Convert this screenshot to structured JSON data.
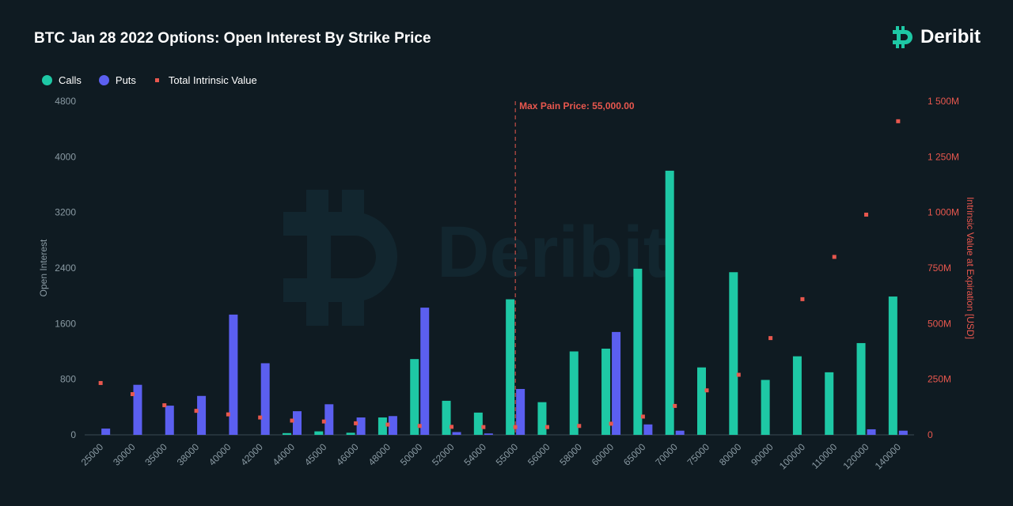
{
  "header": {
    "title": "BTC Jan 28 2022 Options: Open Interest By Strike Price",
    "brand": "Deribit"
  },
  "legend": {
    "calls": "Calls",
    "puts": "Puts",
    "intrinsic": "Total Intrinsic Value"
  },
  "colors": {
    "calls": "#1ec8a5",
    "puts": "#5b5ff0",
    "intrinsic": "#e8574e",
    "background": "#0f1b22"
  },
  "chart_data": {
    "type": "bar",
    "title": "BTC Jan 28 2022 Options: Open Interest By Strike Price",
    "xlabel": "",
    "ylabel": "Open Interest",
    "y2label": "Intrinsic Value at Expiration [USD]",
    "ylim": [
      0,
      4800
    ],
    "y2lim": [
      0,
      1500
    ],
    "yticks": [
      "0",
      "800",
      "1600",
      "2400",
      "3200",
      "4000",
      "4800"
    ],
    "y2ticks": [
      "0",
      "250M",
      "500M",
      "750M",
      "1 000M",
      "1 250M",
      "1 500M"
    ],
    "categories": [
      "25000",
      "30000",
      "35000",
      "38000",
      "40000",
      "42000",
      "44000",
      "45000",
      "46000",
      "48000",
      "50000",
      "52000",
      "54000",
      "55000",
      "56000",
      "58000",
      "60000",
      "65000",
      "70000",
      "75000",
      "80000",
      "90000",
      "100000",
      "110000",
      "120000",
      "140000"
    ],
    "series": [
      {
        "name": "Calls",
        "kind": "bar",
        "axis": "left",
        "values": [
          0,
          0,
          0,
          0,
          0,
          0,
          25,
          50,
          30,
          250,
          1090,
          490,
          320,
          1950,
          470,
          1200,
          1240,
          2390,
          3800,
          970,
          2340,
          790,
          1130,
          900,
          1320,
          1990
        ]
      },
      {
        "name": "Puts",
        "kind": "bar",
        "axis": "left",
        "values": [
          90,
          720,
          420,
          560,
          1730,
          1030,
          340,
          440,
          250,
          270,
          1830,
          40,
          20,
          660,
          0,
          0,
          1480,
          150,
          60,
          0,
          0,
          0,
          0,
          0,
          80,
          60
        ]
      },
      {
        "name": "Total Intrinsic Value",
        "kind": "scatter",
        "axis": "right",
        "unit": "M USD",
        "values": [
          233,
          183,
          133,
          108,
          92,
          78,
          64,
          60,
          52,
          46,
          40,
          36,
          35,
          35,
          35,
          40,
          50,
          82,
          130,
          200,
          270,
          435,
          610,
          800,
          990,
          1410
        ]
      }
    ],
    "annotations": [
      {
        "text": "Max Pain Price: 55,000.00",
        "x": "55000"
      }
    ],
    "watermark": "Deribit",
    "legend_position": "top-left",
    "grid": false
  }
}
